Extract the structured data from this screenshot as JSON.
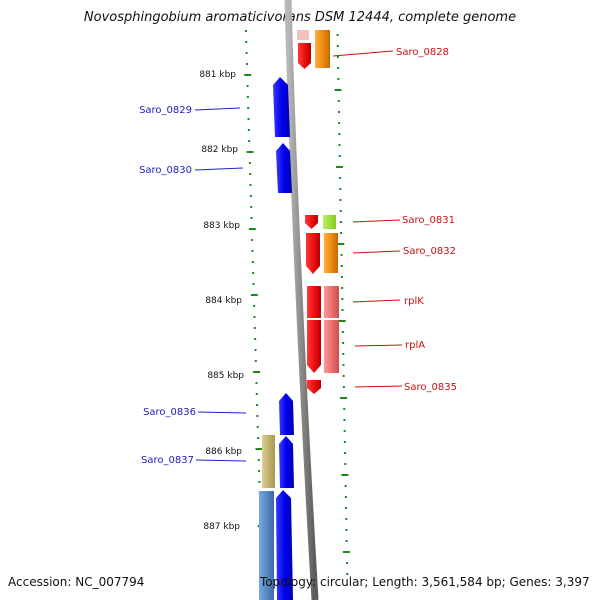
{
  "title": "Novosphingobium aromaticivorans DSM 12444, complete genome",
  "accession": "Accession: NC_007794",
  "topology": "Topology: circular; Length: 3,561,584 bp; Genes: 3,397",
  "colors": {
    "backbone": "#909090",
    "tick": "#1a8a1a",
    "forward_label": "#2222bb",
    "reverse_label": "#cc1111",
    "blue_gene": "#0000ee",
    "red_gene": "#ee1111",
    "pink_gene": "#f07070",
    "orange_gene": "#f08c10",
    "lime_gene": "#99dd33",
    "khaki_gene": "#c8b870",
    "steel_gene": "#5588c0"
  },
  "axis_labels": [
    {
      "text": "881 kbp",
      "kbp": 881
    },
    {
      "text": "882 kbp",
      "kbp": 882
    },
    {
      "text": "883 kbp",
      "kbp": 883
    },
    {
      "text": "884 kbp",
      "kbp": 884
    },
    {
      "text": "885 kbp",
      "kbp": 885
    },
    {
      "text": "886 kbp",
      "kbp": 886
    },
    {
      "text": "887 kbp",
      "kbp": 887
    }
  ],
  "genes": [
    {
      "label": "Saro_0828",
      "strand": "-",
      "start_kbp": 880.65,
      "end_kbp": 880.98
    },
    {
      "label": "Saro_0829",
      "strand": "+",
      "start_kbp": 881.07,
      "end_kbp": 881.85
    },
    {
      "label": "Saro_0830",
      "strand": "+",
      "start_kbp": 881.92,
      "end_kbp": 882.58
    },
    {
      "label": "Saro_0831",
      "strand": "-",
      "start_kbp": 882.87,
      "end_kbp": 883.08
    },
    {
      "label": "Saro_0832",
      "strand": "-",
      "start_kbp": 883.1,
      "end_kbp": 883.66
    },
    {
      "label": "rplK",
      "strand": "-",
      "start_kbp": 883.8,
      "end_kbp": 884.23
    },
    {
      "label": "rplA",
      "strand": "-",
      "start_kbp": 884.24,
      "end_kbp": 884.96
    },
    {
      "label": "Saro_0835",
      "strand": "-",
      "start_kbp": 885.07,
      "end_kbp": 885.25
    },
    {
      "label": "Saro_0836",
      "strand": "+",
      "start_kbp": 885.26,
      "end_kbp": 885.8
    },
    {
      "label": "Saro_0837",
      "strand": "+",
      "start_kbp": 885.82,
      "end_kbp": 886.48
    }
  ]
}
